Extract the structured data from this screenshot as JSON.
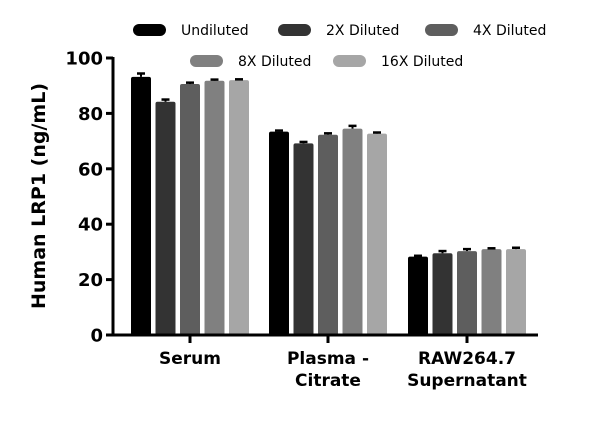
{
  "chart_data": {
    "type": "bar",
    "title": "",
    "xlabel": "",
    "ylabel": "Human LRP1 (ng/mL)",
    "ylim": [
      0,
      100
    ],
    "yticks": [
      "0",
      "20",
      "40",
      "60",
      "80",
      "100"
    ],
    "categories": [
      [
        "Serum"
      ],
      [
        "Plasma -",
        "Citrate"
      ],
      [
        "RAW264.7",
        "Supernatant"
      ]
    ],
    "legend_position": "top",
    "grid": false,
    "series": [
      {
        "name": "Undiluted",
        "color": "#000000",
        "values": [
          93.2,
          73.4,
          28.3
        ],
        "errors": [
          1.2,
          0.4,
          0.3
        ]
      },
      {
        "name": "2X Diluted",
        "color": "#333333",
        "values": [
          84.2,
          69.2,
          29.5
        ],
        "errors": [
          0.8,
          0.5,
          0.8
        ]
      },
      {
        "name": "4X Diluted",
        "color": "#5e5e5e",
        "values": [
          90.6,
          72.3,
          30.3
        ],
        "errors": [
          0.5,
          0.5,
          0.7
        ]
      },
      {
        "name": "8X Diluted",
        "color": "#808080",
        "values": [
          91.8,
          74.5,
          31.0
        ],
        "errors": [
          0.4,
          1.0,
          0.3
        ]
      },
      {
        "name": "16X Diluted",
        "color": "#a6a6a6",
        "values": [
          92.0,
          72.7,
          31.0
        ],
        "errors": [
          0.3,
          0.4,
          0.5
        ]
      }
    ]
  }
}
